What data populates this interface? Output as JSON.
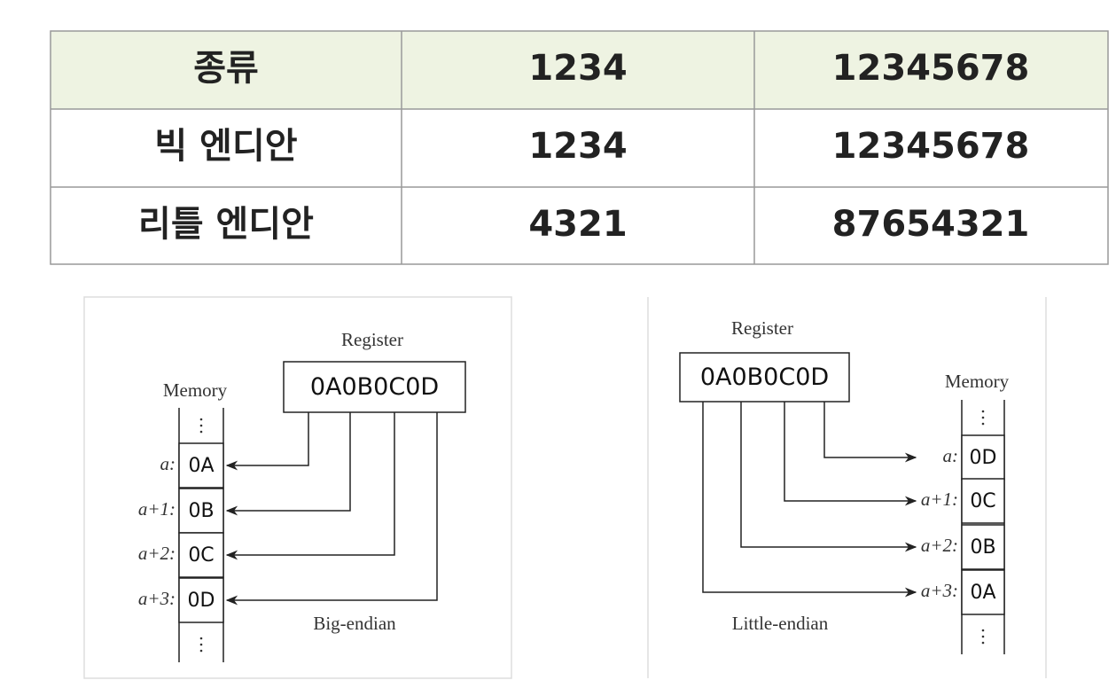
{
  "table": {
    "header": [
      "종류",
      "1234",
      "12345678"
    ],
    "rows": [
      [
        "빅 엔디안",
        "1234",
        "12345678"
      ],
      [
        "리틀 엔디안",
        "4321",
        "87654321"
      ]
    ]
  },
  "diagrams": [
    {
      "register_label": "Register",
      "register_value": "0A0B0C0D",
      "memory_label": "Memory",
      "addresses": [
        "a:",
        "a+1:",
        "a+2:",
        "a+3:"
      ],
      "cells": [
        "0A",
        "0B",
        "0C",
        "0D"
      ],
      "caption": "Big-endian"
    },
    {
      "register_label": "Register",
      "register_value": "0A0B0C0D",
      "memory_label": "Memory",
      "addresses": [
        "a:",
        "a+1:",
        "a+2:",
        "a+3:"
      ],
      "cells": [
        "0D",
        "0C",
        "0B",
        "0A"
      ],
      "caption": "Little-endian"
    }
  ]
}
